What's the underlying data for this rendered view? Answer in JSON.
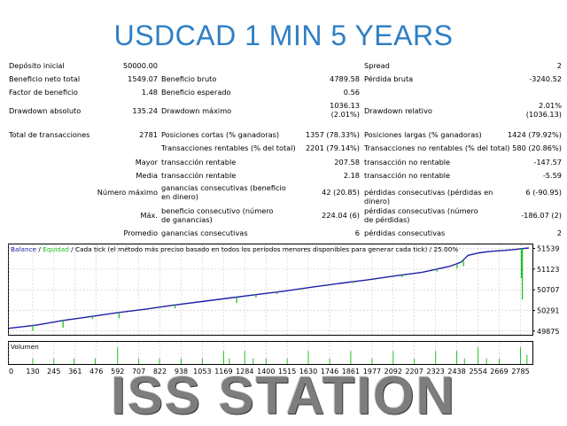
{
  "headline": "USDCAD 1 MIN 5 YEARS",
  "watermark": "ISS STATION",
  "colors": {
    "headline": "#2f7fc4",
    "balance": "#1f1fa8",
    "equity": "#22c022",
    "volume": "#22c022",
    "grid": "#c8c8c8",
    "watermark": "#7d7d7d"
  },
  "report": {
    "deposito_inicial_label": "Depósito inicial",
    "deposito_inicial_value": "50000.00",
    "spread_label": "Spread",
    "spread_value": "2",
    "beneficio_neto_label": "Beneficio neto total",
    "beneficio_neto_value": "1549.07",
    "beneficio_bruto_label": "Beneficio bruto",
    "beneficio_bruto_value": "4789.58",
    "perdida_bruta_label": "Pérdida bruta",
    "perdida_bruta_value": "-3240.52",
    "factor_label": "Factor de beneficio",
    "factor_value": "1.48",
    "esperado_label": "Beneficio esperado",
    "esperado_value": "0.56",
    "dd_absoluto_label": "Drawdown absoluto",
    "dd_absoluto_value": "135.24",
    "dd_maximo_label": "Drawdown máximo",
    "dd_maximo_value": "1036.13 (2.01%)",
    "dd_relativo_label": "Drawdown relativo",
    "dd_relativo_value": "2.01% (1036.13)",
    "total_label": "Total de transacciones",
    "total_value": "2781",
    "cortas_label": "Posiciones cortas (% ganadoras)",
    "cortas_value": "1357 (78.33%)",
    "largas_label": "Posiciones largas (% ganadoras)",
    "largas_value": "1424 (79.92%)",
    "rentables_label": "Transacciones rentables (% del total)",
    "rentables_value": "2201 (79.14%)",
    "no_rentables_label": "Transacciones no rentables (% del total)",
    "no_rentables_value": "580 (20.86%)",
    "mayor_label": "Mayor",
    "mayor_t1": "transacción rentable",
    "mayor_v1": "207.58",
    "mayor_t2": "transacción no rentable",
    "mayor_v2": "-147.57",
    "media_label": "Media",
    "media_t1": "transacción rentable",
    "media_v1": "2.18",
    "media_t2": "transacción no rentable",
    "media_v2": "-5.59",
    "maximo_label": "Número máximo",
    "maximo_t1": "ganancias consecutivas (beneficio en dinero)",
    "maximo_v1": "42 (20.85)",
    "maximo_t2": "pérdidas consecutivas (pérdidas en dinero)",
    "maximo_v2": "6 (-90.95)",
    "max_label": "Máx.",
    "max_t1": "beneficio consecutivo (número de ganancias)",
    "max_v1": "224.04 (6)",
    "max_t2": "pérdidas consecutivas (número de pérdidas)",
    "max_v2": "-186.07 (2)",
    "promedio_label": "Promedio",
    "promedio_t1": "ganancias consecutivas",
    "promedio_v1": "6",
    "promedio_t2": "pérdidas consecutivas",
    "promedio_v2": "2"
  },
  "chart_data": {
    "type": "line",
    "legend": {
      "balance": "Balance",
      "slash1": " / ",
      "equity": "Equidad",
      "slash2": " / ",
      "note": "Cada tick (el método más preciso basado en todos los períodos menores disponibles para generar cada tick)",
      "slash3": " / ",
      "quality": "25.00%"
    },
    "ylim": [
      49800,
      51620
    ],
    "yticks": [
      51539,
      51123,
      50707,
      50291,
      49875
    ],
    "xlim": [
      0,
      2850
    ],
    "xticks": [
      0,
      130,
      245,
      361,
      476,
      592,
      707,
      822,
      938,
      1053,
      1169,
      1284,
      1400,
      1515,
      1630,
      1746,
      1861,
      1977,
      2092,
      2207,
      2323,
      2438,
      2554,
      2669,
      2785
    ],
    "series": [
      {
        "name": "Balance",
        "x": [
          0,
          150,
          300,
          450,
          600,
          750,
          900,
          1050,
          1200,
          1350,
          1500,
          1650,
          1800,
          1950,
          2100,
          2250,
          2400,
          2460,
          2500,
          2560,
          2620,
          2700,
          2760,
          2790,
          2830
        ],
        "y": [
          49930,
          49995,
          50090,
          50170,
          50250,
          50320,
          50400,
          50470,
          50540,
          50610,
          50680,
          50760,
          50835,
          50905,
          50985,
          51060,
          51180,
          51260,
          51400,
          51450,
          51480,
          51500,
          51520,
          51535,
          51549
        ]
      },
      {
        "name": "Equidad",
        "drops": [
          {
            "x": 130,
            "y": 49880
          },
          {
            "x": 295,
            "y": 49940
          },
          {
            "x": 455,
            "y": 50115
          },
          {
            "x": 600,
            "y": 50130
          },
          {
            "x": 905,
            "y": 50330
          },
          {
            "x": 1240,
            "y": 50440
          },
          {
            "x": 1345,
            "y": 50550
          },
          {
            "x": 1460,
            "y": 50620
          },
          {
            "x": 1590,
            "y": 50700
          },
          {
            "x": 1735,
            "y": 50780
          },
          {
            "x": 1870,
            "y": 50840
          },
          {
            "x": 1990,
            "y": 50900
          },
          {
            "x": 2140,
            "y": 50960
          },
          {
            "x": 2330,
            "y": 51070
          },
          {
            "x": 2440,
            "y": 51140
          },
          {
            "x": 2475,
            "y": 51180
          },
          {
            "x": 2790,
            "y": 50940
          },
          {
            "x": 2795,
            "y": 50510
          }
        ]
      }
    ],
    "volume": {
      "label": "Volumen",
      "bars": [
        {
          "x": 130,
          "v": 0.3
        },
        {
          "x": 245,
          "v": 0.3
        },
        {
          "x": 355,
          "v": 0.3
        },
        {
          "x": 470,
          "v": 0.3
        },
        {
          "x": 592,
          "v": 0.9
        },
        {
          "x": 707,
          "v": 0.3
        },
        {
          "x": 820,
          "v": 0.3
        },
        {
          "x": 938,
          "v": 0.3
        },
        {
          "x": 1053,
          "v": 0.3
        },
        {
          "x": 1169,
          "v": 0.7
        },
        {
          "x": 1200,
          "v": 0.3
        },
        {
          "x": 1284,
          "v": 0.7
        },
        {
          "x": 1330,
          "v": 0.3
        },
        {
          "x": 1400,
          "v": 0.3
        },
        {
          "x": 1515,
          "v": 0.3
        },
        {
          "x": 1630,
          "v": 0.7
        },
        {
          "x": 1746,
          "v": 0.3
        },
        {
          "x": 1861,
          "v": 0.7
        },
        {
          "x": 1977,
          "v": 0.3
        },
        {
          "x": 2092,
          "v": 0.7
        },
        {
          "x": 2207,
          "v": 0.3
        },
        {
          "x": 2323,
          "v": 0.7
        },
        {
          "x": 2438,
          "v": 0.7
        },
        {
          "x": 2480,
          "v": 0.3
        },
        {
          "x": 2554,
          "v": 0.9
        },
        {
          "x": 2600,
          "v": 0.3
        },
        {
          "x": 2669,
          "v": 0.3
        },
        {
          "x": 2785,
          "v": 0.9
        },
        {
          "x": 2820,
          "v": 0.5
        }
      ]
    }
  }
}
